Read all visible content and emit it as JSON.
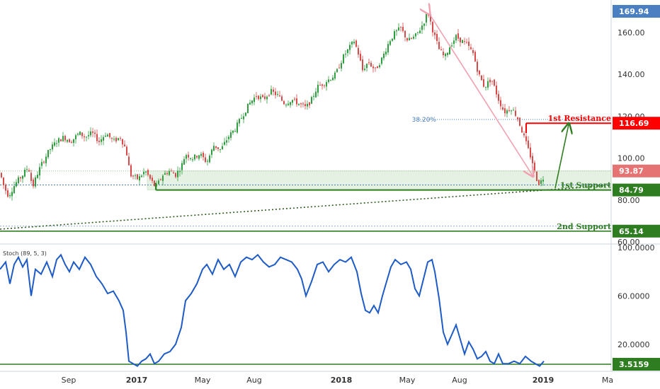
{
  "chart_data": [
    {
      "type": "candlestick",
      "title": "",
      "price_range": [
        55,
        174
      ],
      "y_ticks": [
        "60.00",
        "80.00",
        "100.00",
        "120.00",
        "140.00",
        "160.00"
      ],
      "y_tick_values": [
        60,
        80,
        100,
        120,
        140,
        160
      ],
      "x_tick_labels": [
        "Sep",
        "2017",
        "May",
        "Aug",
        "2018",
        "May",
        "Aug",
        "2019",
        "Ma"
      ],
      "price_path": [
        [
          0,
          93
        ],
        [
          6,
          86
        ],
        [
          12,
          82
        ],
        [
          22,
          88
        ],
        [
          32,
          92
        ],
        [
          40,
          96
        ],
        [
          46,
          86
        ],
        [
          52,
          92
        ],
        [
          60,
          98
        ],
        [
          70,
          104
        ],
        [
          80,
          108
        ],
        [
          90,
          110
        ],
        [
          100,
          108
        ],
        [
          112,
          112
        ],
        [
          120,
          110
        ],
        [
          130,
          112
        ],
        [
          140,
          108
        ],
        [
          150,
          112
        ],
        [
          160,
          108
        ],
        [
          170,
          110
        ],
        [
          178,
          104
        ],
        [
          184,
          92
        ],
        [
          195,
          90
        ],
        [
          205,
          94
        ],
        [
          212,
          90
        ],
        [
          220,
          86
        ],
        [
          230,
          92
        ],
        [
          240,
          94
        ],
        [
          248,
          92
        ],
        [
          256,
          96
        ],
        [
          262,
          102
        ],
        [
          272,
          100
        ],
        [
          282,
          102
        ],
        [
          292,
          98
        ],
        [
          302,
          106
        ],
        [
          312,
          104
        ],
        [
          322,
          110
        ],
        [
          332,
          114
        ],
        [
          342,
          120
        ],
        [
          352,
          126
        ],
        [
          362,
          130
        ],
        [
          372,
          128
        ],
        [
          382,
          132
        ],
        [
          392,
          130
        ],
        [
          402,
          126
        ],
        [
          412,
          128
        ],
        [
          422,
          126
        ],
        [
          432,
          124
        ],
        [
          440,
          128
        ],
        [
          448,
          134
        ],
        [
          458,
          136
        ],
        [
          466,
          138
        ],
        [
          474,
          140
        ],
        [
          484,
          148
        ],
        [
          492,
          152
        ],
        [
          500,
          156
        ],
        [
          506,
          150
        ],
        [
          512,
          142
        ],
        [
          520,
          146
        ],
        [
          530,
          142
        ],
        [
          540,
          148
        ],
        [
          550,
          156
        ],
        [
          558,
          160
        ],
        [
          566,
          162
        ],
        [
          576,
          156
        ],
        [
          586,
          158
        ],
        [
          594,
          162
        ],
        [
          600,
          166
        ],
        [
          604,
          170
        ],
        [
          612,
          160
        ],
        [
          620,
          152
        ],
        [
          628,
          148
        ],
        [
          636,
          154
        ],
        [
          644,
          158
        ],
        [
          652,
          156
        ],
        [
          660,
          154
        ],
        [
          668,
          150
        ],
        [
          676,
          140
        ],
        [
          684,
          134
        ],
        [
          694,
          138
        ],
        [
          704,
          128
        ],
        [
          712,
          122
        ],
        [
          722,
          124
        ],
        [
          730,
          120
        ],
        [
          738,
          112
        ],
        [
          746,
          104
        ],
        [
          752,
          98
        ],
        [
          756,
          92
        ],
        [
          760,
          88
        ],
        [
          764,
          89
        ],
        [
          768,
          91
        ]
      ],
      "price_labels": [
        {
          "text": "169.94",
          "value": 169.94,
          "color": "#4a7fc1"
        },
        {
          "text": "93.87",
          "value": 93.87,
          "color": "#e57373"
        },
        {
          "text": "116.69",
          "value": 116.69,
          "color": "#ff0000"
        },
        {
          "text": "84.79",
          "value": 84.79,
          "color": "#2e7d20"
        },
        {
          "text": "65.14",
          "value": 65.14,
          "color": "#2e7d20"
        }
      ],
      "annotations": [
        {
          "text": "1st Resistance",
          "level": 116.69,
          "color": "#ff0000"
        },
        {
          "text": "1st Support",
          "level": 84.79,
          "color": "#2e7d20"
        },
        {
          "text": "2nd Support",
          "level": 65.14,
          "color": "#2e7d20"
        },
        {
          "text": "38.20%",
          "level": 118.5,
          "color": "#4a7fc1"
        }
      ],
      "support_zone": [
        84.79,
        93.87
      ],
      "colors": {
        "up": "#2e9e3e",
        "down": "#d84a4a",
        "accent": "#2e7d20",
        "fib": "#4a7fc1",
        "pink": "#f2a0b0"
      }
    },
    {
      "type": "line",
      "title": "Stoch (89, 5, 3)",
      "y_range": [
        0,
        100
      ],
      "y_ticks": [
        "20.0000",
        "60.0000",
        "100.0000"
      ],
      "y_tick_values": [
        20,
        60,
        100
      ],
      "current_label": {
        "text": "3.5159",
        "value": 3.5159
      },
      "support_level": 3.5159,
      "series": [
        {
          "color": "#1e5bc6",
          "points": [
            [
              0,
              82
            ],
            [
              8,
              88
            ],
            [
              14,
              70
            ],
            [
              20,
              86
            ],
            [
              26,
              92
            ],
            [
              32,
              84
            ],
            [
              38,
              90
            ],
            [
              44,
              60
            ],
            [
              50,
              82
            ],
            [
              58,
              78
            ],
            [
              66,
              88
            ],
            [
              74,
              76
            ],
            [
              80,
              90
            ],
            [
              86,
              94
            ],
            [
              92,
              86
            ],
            [
              98,
              80
            ],
            [
              104,
              88
            ],
            [
              112,
              82
            ],
            [
              120,
              92
            ],
            [
              128,
              86
            ],
            [
              136,
              76
            ],
            [
              144,
              70
            ],
            [
              152,
              62
            ],
            [
              160,
              64
            ],
            [
              168,
              56
            ],
            [
              174,
              48
            ],
            [
              178,
              30
            ],
            [
              182,
              6
            ],
            [
              188,
              4
            ],
            [
              194,
              2
            ],
            [
              200,
              6
            ],
            [
              206,
              8
            ],
            [
              212,
              12
            ],
            [
              218,
              4
            ],
            [
              224,
              6
            ],
            [
              232,
              12
            ],
            [
              240,
              14
            ],
            [
              248,
              20
            ],
            [
              256,
              34
            ],
            [
              262,
              56
            ],
            [
              270,
              62
            ],
            [
              278,
              70
            ],
            [
              286,
              82
            ],
            [
              292,
              86
            ],
            [
              300,
              78
            ],
            [
              308,
              90
            ],
            [
              316,
              82
            ],
            [
              324,
              86
            ],
            [
              332,
              76
            ],
            [
              340,
              88
            ],
            [
              348,
              92
            ],
            [
              356,
              90
            ],
            [
              364,
              94
            ],
            [
              372,
              88
            ],
            [
              380,
              84
            ],
            [
              388,
              86
            ],
            [
              396,
              92
            ],
            [
              404,
              90
            ],
            [
              412,
              88
            ],
            [
              420,
              82
            ],
            [
              426,
              74
            ],
            [
              432,
              60
            ],
            [
              440,
              72
            ],
            [
              448,
              86
            ],
            [
              456,
              88
            ],
            [
              464,
              80
            ],
            [
              472,
              86
            ],
            [
              480,
              90
            ],
            [
              488,
              88
            ],
            [
              496,
              92
            ],
            [
              504,
              80
            ],
            [
              510,
              62
            ],
            [
              516,
              48
            ],
            [
              522,
              46
            ],
            [
              528,
              52
            ],
            [
              534,
              46
            ],
            [
              540,
              60
            ],
            [
              546,
              72
            ],
            [
              552,
              84
            ],
            [
              558,
              90
            ],
            [
              566,
              86
            ],
            [
              574,
              88
            ],
            [
              580,
              82
            ],
            [
              586,
              66
            ],
            [
              592,
              60
            ],
            [
              598,
              74
            ],
            [
              604,
              88
            ],
            [
              610,
              90
            ],
            [
              614,
              80
            ],
            [
              620,
              58
            ],
            [
              626,
              30
            ],
            [
              632,
              20
            ],
            [
              638,
              28
            ],
            [
              644,
              36
            ],
            [
              650,
              24
            ],
            [
              656,
              12
            ],
            [
              662,
              22
            ],
            [
              668,
              16
            ],
            [
              674,
              8
            ],
            [
              680,
              10
            ],
            [
              686,
              14
            ],
            [
              692,
              6
            ],
            [
              698,
              4
            ],
            [
              704,
              12
            ],
            [
              710,
              4
            ],
            [
              718,
              4
            ],
            [
              726,
              6
            ],
            [
              734,
              4
            ],
            [
              742,
              10
            ],
            [
              750,
              6
            ],
            [
              756,
              4
            ],
            [
              762,
              2
            ],
            [
              768,
              6
            ]
          ]
        }
      ]
    }
  ]
}
